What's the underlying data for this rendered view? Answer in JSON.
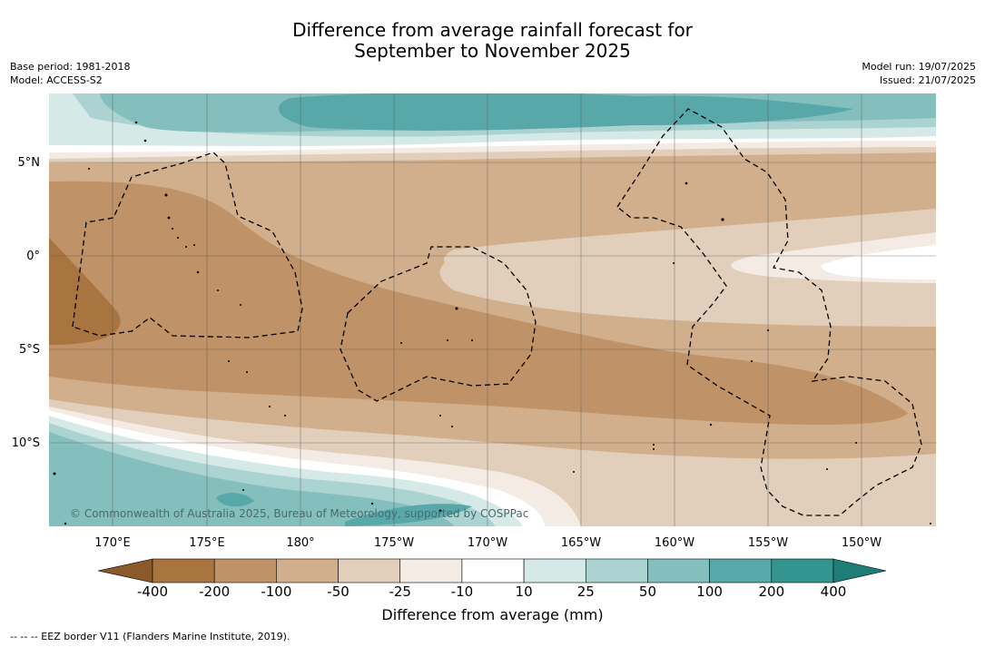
{
  "title_line1": "Difference from average rainfall forecast for",
  "title_line2": "September to November 2025",
  "base_period": "Base period: 1981-2018",
  "model": "Model: ACCESS-S2",
  "model_run": "Model run: 19/07/2025",
  "issued": "Issued: 21/07/2025",
  "copyright": "© Commonwealth of Australia 2025, Bureau of Meteorology, supported by COSPPac",
  "footnote": "--  --  -- EEZ border V11 (Flanders Marine Institute, 2019).",
  "lat_labels": [
    "5°N",
    "0°",
    "5°S",
    "10°S"
  ],
  "lon_labels": [
    "170°E",
    "175°E",
    "180°",
    "175°W",
    "170°W",
    "165°W",
    "160°W",
    "155°W",
    "150°W"
  ],
  "colorbar": {
    "title": "Difference from average (mm)",
    "tick_labels": [
      "-400",
      "-200",
      "-100",
      "-50",
      "-25",
      "-10",
      "10",
      "25",
      "50",
      "100",
      "200",
      "400"
    ],
    "colors": [
      "#8a5a2b",
      "#a8743f",
      "#bf9267",
      "#d1af8c",
      "#e2cfbb",
      "#f3ebe4",
      "#ffffff",
      "#d5e9e7",
      "#abd3d1",
      "#84bebd",
      "#58a8aa",
      "#34948f",
      "#1f7d78"
    ]
  }
}
